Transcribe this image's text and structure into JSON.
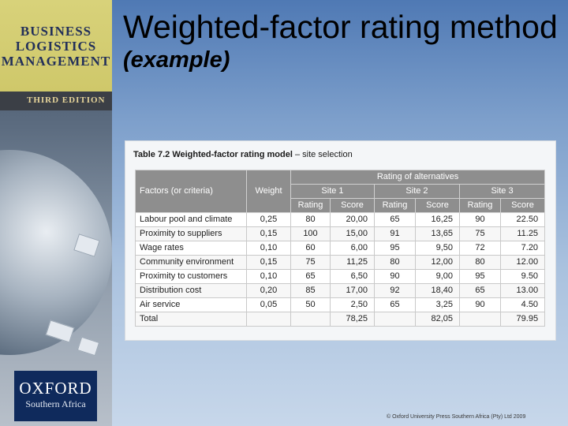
{
  "cover": {
    "title_lines": [
      "BUSINESS",
      "LOGISTICS",
      "MANAGEMENT"
    ],
    "edition": "THIRD EDITION",
    "publisher": "OXFORD",
    "publisher_region": "Southern Africa"
  },
  "slide": {
    "title": "Weighted-factor rating method",
    "subtitle": "(example)"
  },
  "table": {
    "caption_bold": "Table 7.2 Weighted-factor rating model",
    "caption_rest": " – site selection",
    "headers": {
      "factors": "Factors (or criteria)",
      "weight": "Weight",
      "rating_of_alternatives": "Rating of alternatives",
      "sites": [
        "Site 1",
        "Site 2",
        "Site 3"
      ],
      "rating": "Rating",
      "score": "Score"
    },
    "rows": [
      {
        "factor": "Labour pool and climate",
        "weight": "0,25",
        "s1r": "80",
        "s1s": "20,00",
        "s2r": "65",
        "s2s": "16,25",
        "s3r": "90",
        "s3s": "22.50"
      },
      {
        "factor": "Proximity to suppliers",
        "weight": "0,15",
        "s1r": "100",
        "s1s": "15,00",
        "s2r": "91",
        "s2s": "13,65",
        "s3r": "75",
        "s3s": "11.25"
      },
      {
        "factor": "Wage rates",
        "weight": "0,10",
        "s1r": "60",
        "s1s": "6,00",
        "s2r": "95",
        "s2s": "9,50",
        "s3r": "72",
        "s3s": "7.20"
      },
      {
        "factor": "Community environment",
        "weight": "0,15",
        "s1r": "75",
        "s1s": "11,25",
        "s2r": "80",
        "s2s": "12,00",
        "s3r": "80",
        "s3s": "12.00"
      },
      {
        "factor": "Proximity to customers",
        "weight": "0,10",
        "s1r": "65",
        "s1s": "6,50",
        "s2r": "90",
        "s2s": "9,00",
        "s3r": "95",
        "s3s": "9.50"
      },
      {
        "factor": "Distribution cost",
        "weight": "0,20",
        "s1r": "85",
        "s1s": "17,00",
        "s2r": "92",
        "s2s": "18,40",
        "s3r": "65",
        "s3s": "13.00"
      },
      {
        "factor": "Air service",
        "weight": "0,05",
        "s1r": "50",
        "s1s": "2,50",
        "s2r": "65",
        "s2s": "3,25",
        "s3r": "90",
        "s3s": "4.50"
      },
      {
        "factor": "Total",
        "weight": "",
        "s1r": "",
        "s1s": "78,25",
        "s2r": "",
        "s2s": "82,05",
        "s3r": "",
        "s3s": "79.95"
      }
    ]
  },
  "footer": {
    "copyright": "© Oxford University Press Southern Africa (Pty) Ltd 2009"
  }
}
